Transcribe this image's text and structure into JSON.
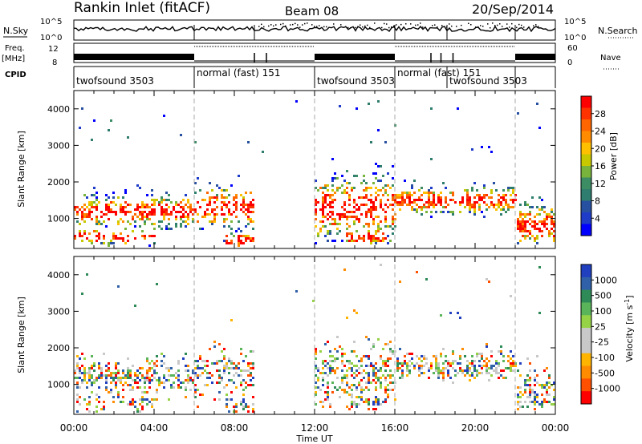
{
  "header": {
    "station": "Rankin Inlet (fitACF)",
    "beam": "Beam 08",
    "date": "20/Sep/2014"
  },
  "status_panels": {
    "nsky_label": "N.Sky",
    "nsearch_label": "N.Search",
    "freq_label": "Freq.",
    "freq_unit": "[MHz]",
    "nave_label": "Nave",
    "cpid_label": "CPID",
    "nsky_ticks": [
      "10^5",
      "10^0"
    ],
    "nsearch_ticks": [
      "10^5",
      "10^0"
    ],
    "freq_ticks": [
      "12",
      "8"
    ],
    "nave_ticks": [
      "60",
      "0"
    ]
  },
  "cpid_segments": [
    {
      "start": 0,
      "end": 6,
      "label": "twofsound 3503",
      "row": 2
    },
    {
      "start": 6,
      "end": 12,
      "label": "normal (fast) 151",
      "row": 1
    },
    {
      "start": 12,
      "end": 16,
      "label": "twofsound 3503",
      "row": 2
    },
    {
      "start": 16,
      "end": 18.6,
      "label": "normal (fast) 151",
      "row": 1
    },
    {
      "start": 18.6,
      "end": 22,
      "label": "twofsound 3503",
      "row": 2
    },
    {
      "start": 22,
      "end": 24,
      "label": "",
      "row": 1
    }
  ],
  "chart_data": [
    {
      "type": "heatmap",
      "name": "power",
      "ylabel": "Slant Range [km]",
      "xlabel": "Time UT",
      "xlim": [
        0,
        24
      ],
      "ylim": [
        180,
        4500
      ],
      "xticks": [
        "00:00",
        "04:00",
        "08:00",
        "12:00",
        "16:00",
        "20:00",
        "00:00"
      ],
      "yticks": [
        1000,
        2000,
        3000,
        4000
      ],
      "colorbar_label": "Power [dB]",
      "colorbar_ticks": [
        "28",
        "24",
        "20",
        "16",
        "12",
        "8",
        "4"
      ],
      "colorbar_colors": [
        "#ff0000",
        "#ff3300",
        "#ff6600",
        "#ff8c00",
        "#ffc000",
        "#c8c800",
        "#78b43c",
        "#3c8c64",
        "#2e7d6e",
        "#2850a0",
        "#1e3cc8",
        "#0000ff"
      ]
    },
    {
      "type": "heatmap",
      "name": "velocity",
      "ylabel": "Slant Range [km]",
      "xlabel": "Time UT",
      "xlim": [
        0,
        24
      ],
      "ylim": [
        180,
        4500
      ],
      "xticks": [
        "00:00",
        "04:00",
        "08:00",
        "12:00",
        "16:00",
        "20:00",
        "00:00"
      ],
      "yticks": [
        1000,
        2000,
        3000,
        4000
      ],
      "colorbar_label": "Velocity [m s",
      "colorbar_label_sup": "-1",
      "colorbar_ticks": [
        "1000",
        "500",
        "100",
        "25",
        "-25",
        "-100",
        "-500",
        "-1000"
      ],
      "colorbar_colors": [
        "#2040c0",
        "#3060a8",
        "#2e8b57",
        "#5ab45a",
        "#96d246",
        "#c8c8c8",
        "#c8c8c8",
        "#ffb400",
        "#ff8c00",
        "#ff5000",
        "#ff0000"
      ]
    }
  ]
}
